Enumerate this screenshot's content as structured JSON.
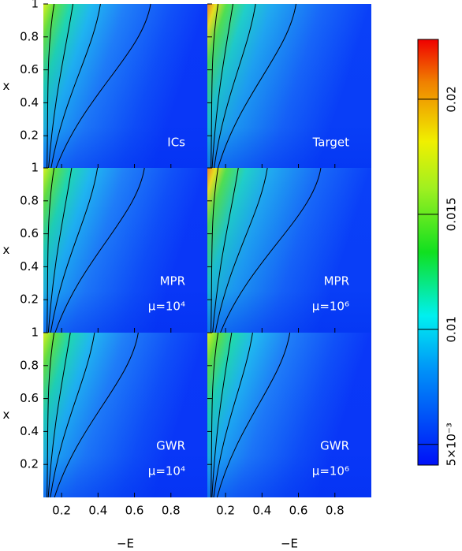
{
  "chart_data": {
    "type": "heatmap",
    "panels": [
      {
        "label": "ICs"
      },
      {
        "label": "Target"
      },
      {
        "label": "MPR",
        "param": "μ=10⁴"
      },
      {
        "label": "MPR",
        "param": "μ=10⁶"
      },
      {
        "label": "GWR",
        "param": "μ=10⁴"
      },
      {
        "label": "GWR",
        "param": "μ=10⁶"
      }
    ],
    "xlabel": "−E",
    "ylabel": "x",
    "xlim": [
      0.1,
      1.0
    ],
    "xticks": [
      0.2,
      0.4,
      0.6,
      0.8
    ],
    "ylim": [
      0,
      1
    ],
    "yticks": [
      0.2,
      0.4,
      0.6,
      0.8,
      1
    ],
    "colorbar": {
      "lim": [
        0.0041,
        0.0226
      ],
      "ticks": [
        {
          "value": 0.005,
          "label": "5×10⁻³"
        },
        0.01,
        0.015,
        0.02
      ]
    }
  }
}
